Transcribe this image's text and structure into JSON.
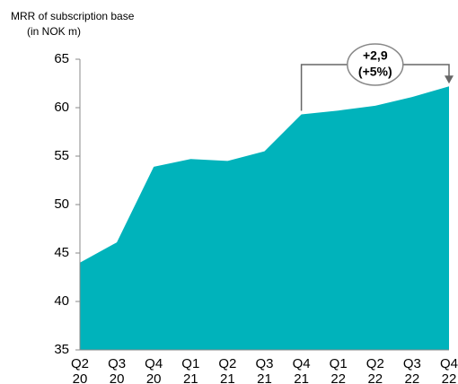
{
  "chart_data": {
    "type": "area",
    "y_axis_title": [
      "MRR of subscription base",
      "(in NOK m)"
    ],
    "categories": [
      "Q2\n20",
      "Q3\n20",
      "Q4\n20",
      "Q1\n21",
      "Q2\n21",
      "Q3\n21",
      "Q4\n21",
      "Q1\n22",
      "Q2\n22",
      "Q3\n22",
      "Q4\n22"
    ],
    "values": [
      44.0,
      46.1,
      53.9,
      54.7,
      54.5,
      55.5,
      59.3,
      59.7,
      60.2,
      61.1,
      62.2
    ],
    "color": "#00b3bb",
    "ylim": [
      35,
      65
    ],
    "yticks": [
      35,
      40,
      45,
      50,
      55,
      60,
      65
    ],
    "annotation": [
      "+2,9",
      "(+5%)"
    ]
  }
}
